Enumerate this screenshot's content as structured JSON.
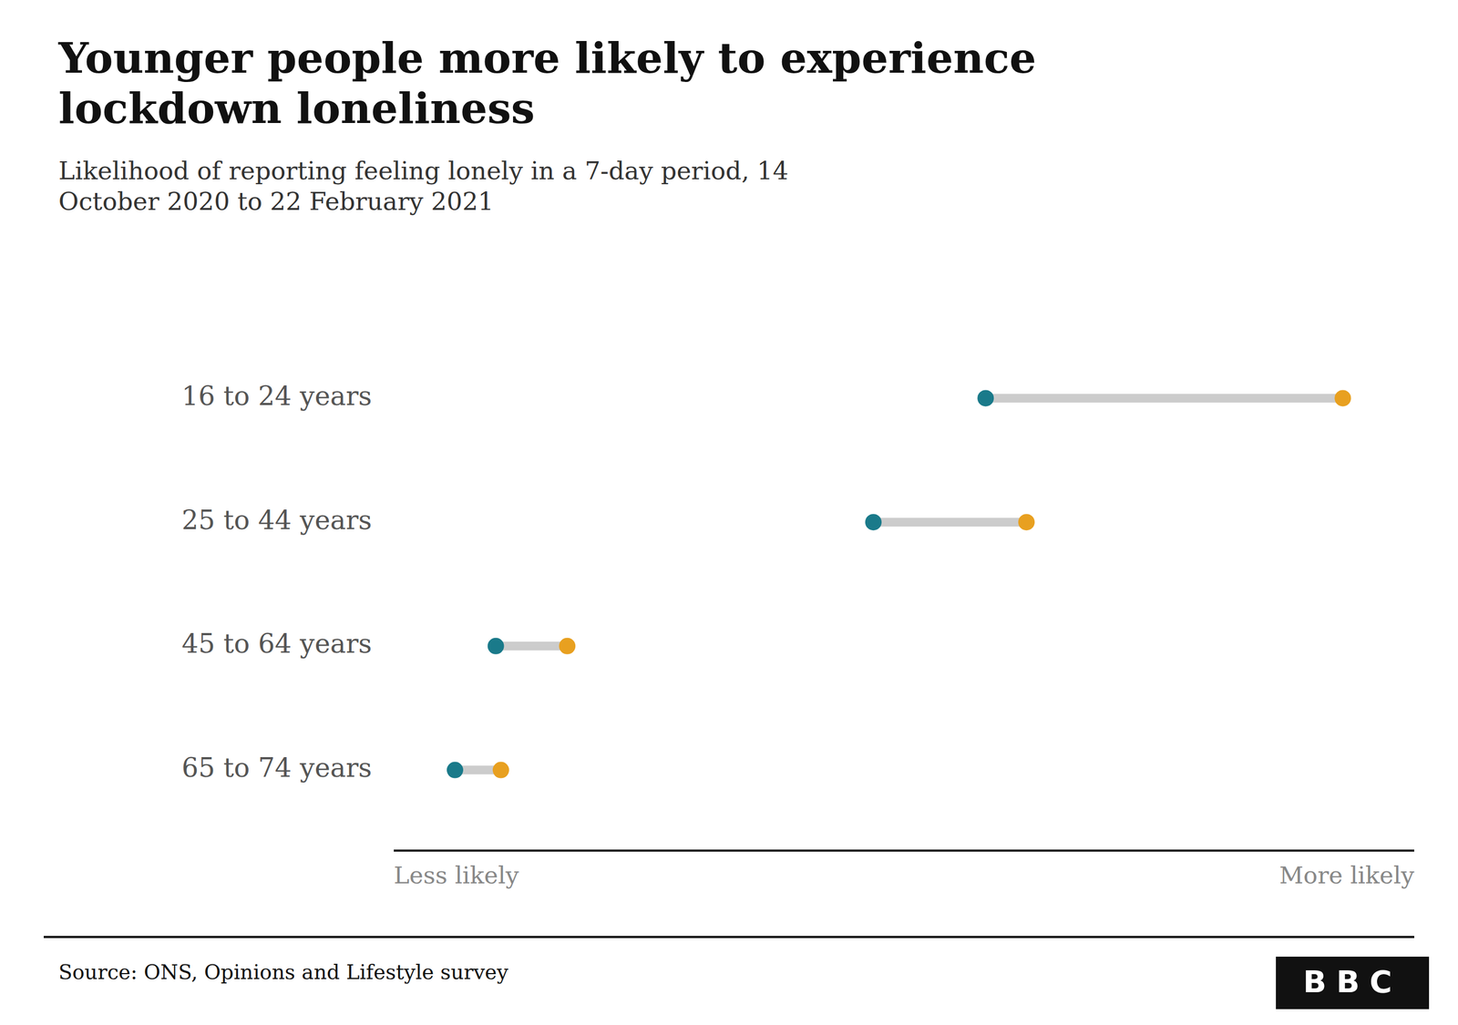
{
  "chart_data": {
    "type": "dumbbell",
    "orientation": "horizontal",
    "title": "Younger people more likely to experience lockdown loneliness",
    "subtitle": "Likelihood of reporting feeling lonely in a 7-day period, 14 October 2020 to 22 February 2021",
    "source": "Source: ONS, Opinions and Lifestyle survey",
    "annotations": [
      "BBC"
    ],
    "categories": [
      "16 to 24 years",
      "25 to 44 years",
      "45 to 64 years",
      "65 to 74 years"
    ],
    "color": "#cccccc",
    "series": [
      {
        "color": "#1a7a8a",
        "values": [
          0.58,
          0.47,
          0.1,
          0.06
        ]
      },
      {
        "color": "#e8a020",
        "values": [
          0.93,
          0.62,
          0.17,
          0.105
        ]
      }
    ],
    "xlim": [
      0.0,
      1.0
    ],
    "xticks": [
      {
        "value": 0.0,
        "label": "Less likely"
      },
      {
        "value": 1.0,
        "label": "More likely"
      }
    ],
    "grid": false
  }
}
